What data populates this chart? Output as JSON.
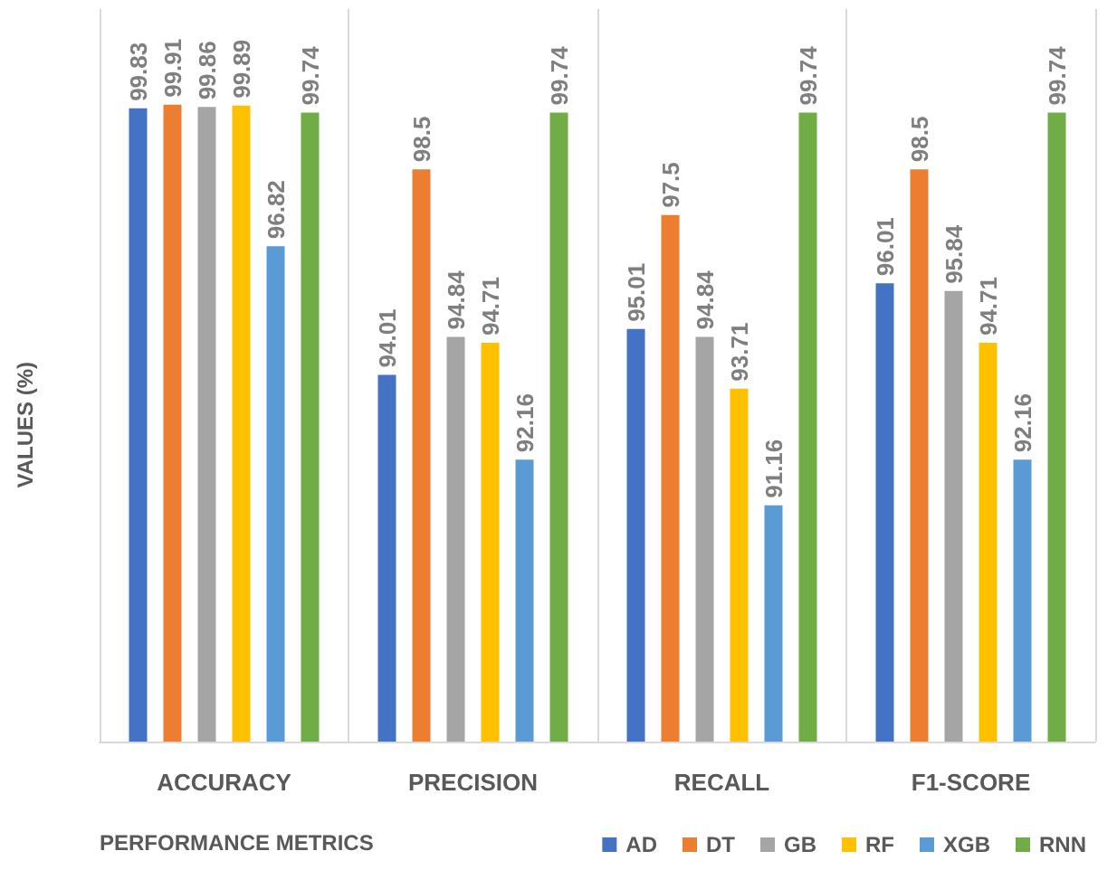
{
  "chart_data": {
    "type": "bar",
    "xlabel": "PERFORMANCE METRICS",
    "ylabel": "VALUES (%)",
    "categories": [
      "ACCURACY",
      "PRECISION",
      "RECALL",
      "F1-SCORE"
    ],
    "series": [
      {
        "name": "AD",
        "color": "#4472c4",
        "values": [
          99.83,
          94.01,
          95.01,
          96.01
        ]
      },
      {
        "name": "DT",
        "color": "#ed7d31",
        "values": [
          99.91,
          98.5,
          97.5,
          98.5
        ]
      },
      {
        "name": "GB",
        "color": "#a5a5a5",
        "values": [
          99.86,
          94.84,
          94.84,
          95.84
        ]
      },
      {
        "name": "RF",
        "color": "#ffc000",
        "values": [
          99.89,
          94.71,
          93.71,
          94.71
        ]
      },
      {
        "name": "XGB",
        "color": "#5b9bd5",
        "values": [
          96.82,
          92.16,
          91.16,
          92.16
        ]
      },
      {
        "name": "RNN",
        "color": "#70ad47",
        "values": [
          99.74,
          99.74,
          99.74,
          99.74
        ]
      }
    ],
    "ylim": [
      86,
      102
    ],
    "tick_labels": "x",
    "data_labels": true,
    "grid": "x",
    "legend": "bottom right"
  }
}
